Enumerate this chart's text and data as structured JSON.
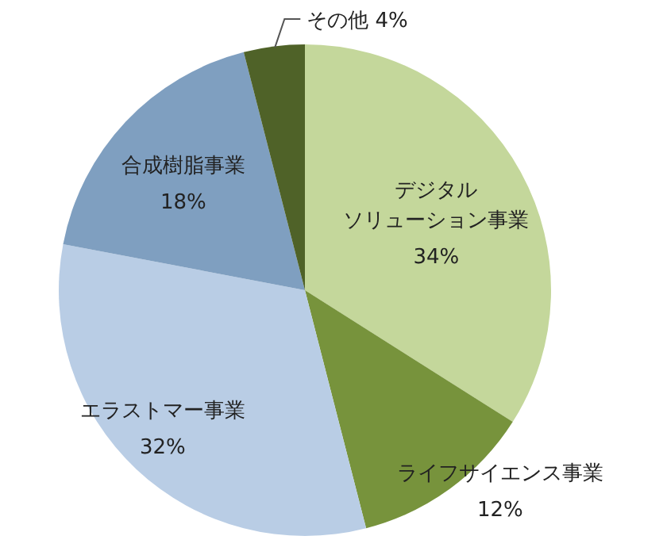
{
  "chart_data": {
    "type": "pie",
    "categories": [
      "デジタルソリューション事業",
      "ライフサイエンス事業",
      "エラストマー事業",
      "合成樹脂事業",
      "その他"
    ],
    "values": [
      34,
      12,
      32,
      18,
      4
    ],
    "colors": [
      "#c4d79b",
      "#77933c",
      "#b9cde5",
      "#7f9fc0",
      "#4f6228"
    ],
    "value_labels": [
      "34%",
      "12%",
      "32%",
      "18%",
      "4%"
    ],
    "legend": false
  }
}
